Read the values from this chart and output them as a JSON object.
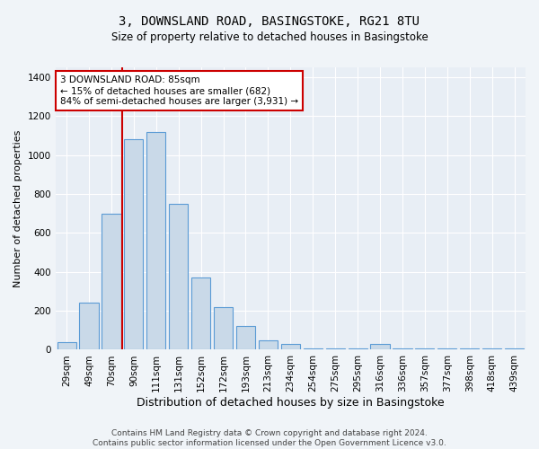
{
  "title_line1": "3, DOWNSLAND ROAD, BASINGSTOKE, RG21 8TU",
  "title_line2": "Size of property relative to detached houses in Basingstoke",
  "xlabel": "Distribution of detached houses by size in Basingstoke",
  "ylabel": "Number of detached properties",
  "footer_line1": "Contains HM Land Registry data © Crown copyright and database right 2024.",
  "footer_line2": "Contains public sector information licensed under the Open Government Licence v3.0.",
  "annotation_line1": "3 DOWNSLAND ROAD: 85sqm",
  "annotation_line2": "← 15% of detached houses are smaller (682)",
  "annotation_line3": "84% of semi-detached houses are larger (3,931) →",
  "bar_categories": [
    "29sqm",
    "49sqm",
    "70sqm",
    "90sqm",
    "111sqm",
    "131sqm",
    "152sqm",
    "172sqm",
    "193sqm",
    "213sqm",
    "234sqm",
    "254sqm",
    "275sqm",
    "295sqm",
    "316sqm",
    "336sqm",
    "357sqm",
    "377sqm",
    "398sqm",
    "418sqm",
    "439sqm"
  ],
  "bar_values": [
    40,
    240,
    700,
    1080,
    1120,
    750,
    370,
    220,
    120,
    50,
    30,
    5,
    5,
    5,
    30,
    5,
    5,
    5,
    5,
    5,
    5
  ],
  "bar_color": "#c9d9e8",
  "bar_edge_color": "#5b9bd5",
  "ylim": [
    0,
    1450
  ],
  "yticks": [
    0,
    200,
    400,
    600,
    800,
    1000,
    1200,
    1400
  ],
  "fig_bg_color": "#f0f4f8",
  "axes_bg_color": "#e8eef5",
  "grid_color": "#ffffff",
  "annotation_box_facecolor": "#ffffff",
  "annotation_box_edgecolor": "#cc0000",
  "red_line_color": "#cc0000",
  "red_line_x": 2.5,
  "title_fontsize": 10,
  "subtitle_fontsize": 8.5,
  "xlabel_fontsize": 9,
  "ylabel_fontsize": 8,
  "annotation_fontsize": 7.5,
  "footer_fontsize": 6.5,
  "tick_fontsize": 7.5
}
